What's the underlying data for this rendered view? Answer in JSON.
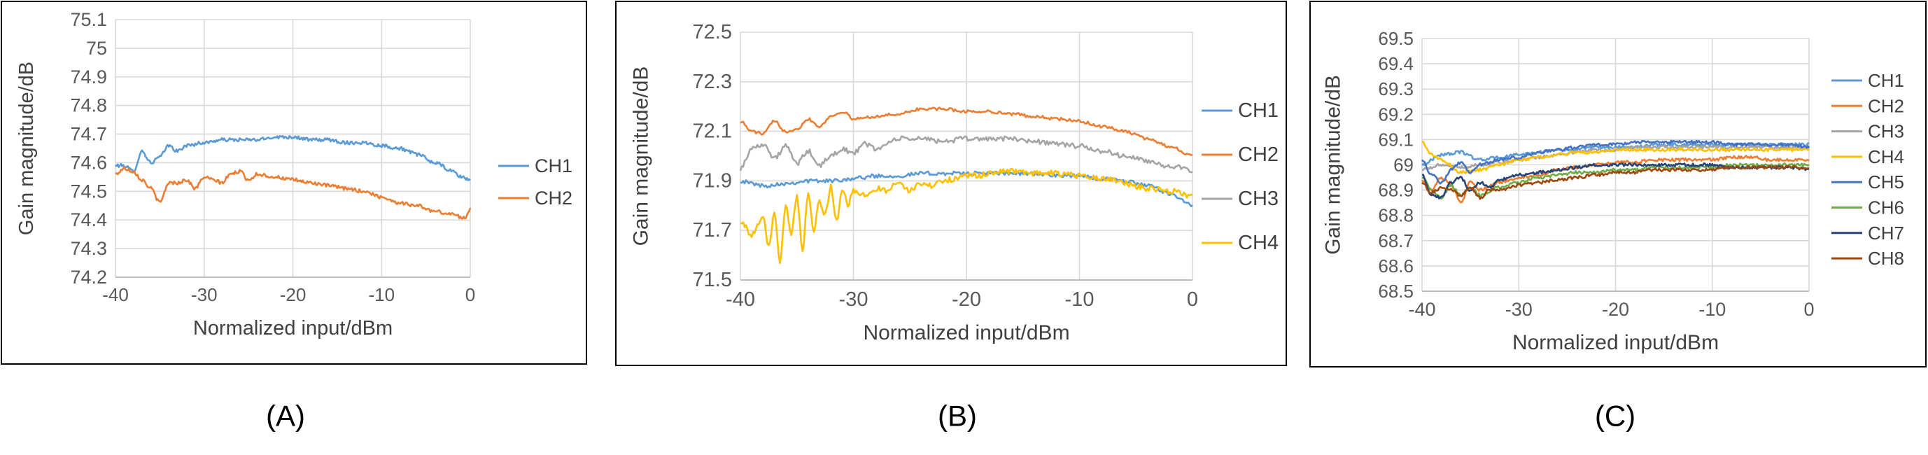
{
  "chart_data": [
    {
      "panel_label": "(A)",
      "type": "line",
      "xlabel": "Normalized input/dBm",
      "ylabel": "Gain magnitude/dB",
      "xlim": [
        -40,
        0
      ],
      "ylim": [
        74.2,
        75.1
      ],
      "xticks": [
        -40,
        -30,
        -20,
        -10,
        0
      ],
      "yticks": [
        74.2,
        74.3,
        74.4,
        74.5,
        74.6,
        74.7,
        74.8,
        74.9,
        75,
        75.1
      ],
      "grid": true,
      "legend": "right",
      "series": [
        {
          "name": "CH1",
          "color": "#5B9BD5",
          "x": [
            -40,
            -39,
            -38,
            -37,
            -36,
            -35,
            -34,
            -33,
            -32,
            -30,
            -28,
            -26,
            -24,
            -22,
            -20,
            -18,
            -16,
            -14,
            -12,
            -10,
            -8,
            -6,
            -4,
            -2,
            -1,
            0
          ],
          "y": [
            74.59,
            74.59,
            74.57,
            74.64,
            74.6,
            74.62,
            74.66,
            74.64,
            74.66,
            74.67,
            74.68,
            74.68,
            74.68,
            74.69,
            74.69,
            74.68,
            74.68,
            74.67,
            74.67,
            74.66,
            74.65,
            74.63,
            74.6,
            74.57,
            74.55,
            74.54
          ],
          "noise": 0.006
        },
        {
          "name": "CH2",
          "color": "#ED7D31",
          "x": [
            -40,
            -39,
            -38,
            -37,
            -36,
            -35,
            -34,
            -33,
            -32,
            -31,
            -30,
            -29,
            -28,
            -27,
            -26,
            -25,
            -24,
            -22,
            -20,
            -18,
            -16,
            -14,
            -12,
            -10,
            -8,
            -6,
            -4,
            -2,
            -1,
            -0.5,
            0
          ],
          "y": [
            74.56,
            74.58,
            74.57,
            74.54,
            74.51,
            74.46,
            74.53,
            74.53,
            74.54,
            74.51,
            74.55,
            74.54,
            74.53,
            74.56,
            74.57,
            74.54,
            74.56,
            74.55,
            74.54,
            74.53,
            74.52,
            74.51,
            74.5,
            74.48,
            74.46,
            74.45,
            74.43,
            74.42,
            74.41,
            74.41,
            74.44
          ],
          "noise": 0.006
        }
      ]
    },
    {
      "panel_label": "(B)",
      "type": "line",
      "xlabel": "Normalized input/dBm",
      "ylabel": "Gain magnitude/dB",
      "xlim": [
        -40,
        0
      ],
      "ylim": [
        71.5,
        72.5
      ],
      "xticks": [
        -40,
        -30,
        -20,
        -10,
        0
      ],
      "yticks": [
        71.5,
        71.7,
        71.9,
        72.1,
        72.3,
        72.5
      ],
      "grid": true,
      "legend": "right",
      "series": [
        {
          "name": "CH1",
          "color": "#5B9BD5",
          "x": [
            -40,
            -39,
            -38,
            -36,
            -34,
            -32,
            -30,
            -28,
            -26,
            -24,
            -22,
            -20,
            -18,
            -16,
            -14,
            -12,
            -10,
            -8,
            -6,
            -4,
            -2,
            0
          ],
          "y": [
            71.9,
            71.89,
            71.88,
            71.89,
            71.9,
            71.9,
            71.91,
            71.92,
            71.92,
            71.93,
            71.93,
            71.93,
            71.93,
            71.93,
            71.93,
            71.92,
            71.92,
            71.91,
            71.9,
            71.88,
            71.85,
            71.8
          ],
          "noise": 0.008
        },
        {
          "name": "CH2",
          "color": "#ED7D31",
          "x": [
            -40,
            -39,
            -38,
            -37,
            -36,
            -35,
            -34,
            -33,
            -32,
            -31,
            -30,
            -28,
            -26,
            -24,
            -22,
            -20,
            -18,
            -16,
            -14,
            -12,
            -10,
            -8,
            -6,
            -4,
            -2,
            0
          ],
          "y": [
            72.14,
            72.1,
            72.09,
            72.14,
            72.1,
            72.11,
            72.15,
            72.12,
            72.16,
            72.18,
            72.15,
            72.16,
            72.17,
            72.19,
            72.19,
            72.18,
            72.18,
            72.17,
            72.16,
            72.15,
            72.14,
            72.12,
            72.1,
            72.07,
            72.04,
            72.0
          ],
          "noise": 0.006
        },
        {
          "name": "CH3",
          "color": "#A5A5A5",
          "x": [
            -40,
            -39,
            -38,
            -37,
            -36,
            -35,
            -34,
            -33,
            -32,
            -31,
            -30,
            -29,
            -28,
            -26,
            -24,
            -22,
            -20,
            -18,
            -16,
            -14,
            -12,
            -10,
            -8,
            -6,
            -4,
            -2,
            0
          ],
          "y": [
            71.95,
            72.03,
            72.05,
            71.99,
            72.04,
            71.97,
            72.02,
            71.96,
            72.0,
            72.03,
            72.01,
            72.05,
            72.03,
            72.07,
            72.07,
            72.06,
            72.07,
            72.07,
            72.07,
            72.06,
            72.05,
            72.04,
            72.02,
            72.0,
            71.98,
            71.96,
            71.94
          ],
          "noise": 0.01
        },
        {
          "name": "CH4",
          "color": "#FFC000",
          "x": [
            -40,
            -39,
            -38,
            -37.5,
            -37,
            -36.5,
            -36,
            -35.5,
            -35,
            -34.5,
            -34,
            -33.5,
            -33,
            -32.5,
            -32,
            -31.5,
            -31,
            -30.5,
            -30,
            -29,
            -28,
            -27,
            -26,
            -25,
            -24,
            -23,
            -22,
            -21,
            -20,
            -19,
            -18,
            -17,
            -16,
            -14,
            -12,
            -10,
            -8,
            -6,
            -4,
            -2,
            0
          ],
          "y": [
            71.74,
            71.68,
            71.75,
            71.63,
            71.78,
            71.58,
            71.8,
            71.68,
            71.84,
            71.62,
            71.86,
            71.7,
            71.82,
            71.76,
            71.88,
            71.74,
            71.87,
            71.8,
            71.86,
            71.84,
            71.87,
            71.86,
            71.9,
            71.86,
            71.89,
            71.88,
            71.9,
            71.91,
            71.92,
            71.92,
            71.93,
            71.94,
            71.94,
            71.93,
            71.93,
            71.92,
            71.91,
            71.89,
            71.87,
            71.86,
            71.84
          ],
          "noise": 0.012
        }
      ]
    },
    {
      "panel_label": "(C)",
      "type": "line",
      "xlabel": "Normalized input/dBm",
      "ylabel": "Gain magnitude/dB",
      "xlim": [
        -40,
        0
      ],
      "ylim": [
        68.5,
        69.5
      ],
      "xticks": [
        -40,
        -30,
        -20,
        -10,
        0
      ],
      "yticks": [
        68.5,
        68.6,
        68.7,
        68.8,
        68.9,
        69,
        69.1,
        69.2,
        69.3,
        69.4,
        69.5
      ],
      "grid": true,
      "legend": "right",
      "series": [
        {
          "name": "CH1",
          "color": "#5B9BD5",
          "x": [
            -40,
            -38,
            -36,
            -34,
            -32,
            -30,
            -28,
            -26,
            -24,
            -22,
            -20,
            -18,
            -16,
            -14,
            -12,
            -10,
            -8,
            -6,
            -4,
            -2,
            0
          ],
          "y": [
            69.0,
            69.04,
            69.05,
            69.02,
            69.03,
            69.04,
            69.05,
            69.06,
            69.06,
            69.07,
            69.07,
            69.07,
            69.08,
            69.08,
            69.08,
            69.08,
            69.08,
            69.08,
            69.08,
            69.08,
            69.08
          ],
          "noise": 0.006
        },
        {
          "name": "CH2",
          "color": "#ED7D31",
          "x": [
            -40,
            -39,
            -38,
            -37,
            -36,
            -35,
            -34,
            -32,
            -30,
            -28,
            -26,
            -24,
            -22,
            -20,
            -18,
            -16,
            -14,
            -12,
            -10,
            -8,
            -6,
            -4,
            -2,
            0
          ],
          "y": [
            68.94,
            68.9,
            68.95,
            68.92,
            68.85,
            68.93,
            68.9,
            68.93,
            68.95,
            68.96,
            68.98,
            68.99,
            69.0,
            69.01,
            69.01,
            69.02,
            69.02,
            69.02,
            69.02,
            69.03,
            69.03,
            69.02,
            69.02,
            69.02
          ],
          "noise": 0.006
        },
        {
          "name": "CH3",
          "color": "#A5A5A5",
          "x": [
            -40,
            -38,
            -36,
            -34,
            -32,
            -30,
            -28,
            -26,
            -24,
            -22,
            -20,
            -18,
            -16,
            -14,
            -12,
            -10,
            -8,
            -6,
            -4,
            -2,
            0
          ],
          "y": [
            68.98,
            69.0,
            68.99,
            69.0,
            69.01,
            69.02,
            69.03,
            69.04,
            69.05,
            69.06,
            69.06,
            69.07,
            69.07,
            69.07,
            69.07,
            69.07,
            69.07,
            69.07,
            69.07,
            69.07,
            69.07
          ],
          "noise": 0.006
        },
        {
          "name": "CH4",
          "color": "#FFC000",
          "x": [
            -40,
            -39,
            -38,
            -36,
            -34,
            -32,
            -30,
            -28,
            -26,
            -24,
            -22,
            -20,
            -18,
            -16,
            -14,
            -12,
            -10,
            -8,
            -6,
            -4,
            -2,
            0
          ],
          "y": [
            69.09,
            69.04,
            69.02,
            68.97,
            68.98,
            69.0,
            69.02,
            69.03,
            69.04,
            69.05,
            69.05,
            69.06,
            69.06,
            69.06,
            69.06,
            69.06,
            69.06,
            69.06,
            69.06,
            69.06,
            69.06,
            69.06
          ],
          "noise": 0.006
        },
        {
          "name": "CH5",
          "color": "#4472C4",
          "x": [
            -40,
            -39,
            -38,
            -37,
            -36,
            -35,
            -34,
            -32,
            -30,
            -28,
            -26,
            -24,
            -22,
            -20,
            -18,
            -16,
            -14,
            -12,
            -10,
            -8,
            -6,
            -4,
            -2,
            0
          ],
          "y": [
            69.02,
            68.96,
            68.93,
            68.98,
            69.01,
            68.97,
            69.0,
            69.02,
            69.03,
            69.05,
            69.06,
            69.07,
            69.08,
            69.08,
            69.09,
            69.09,
            69.09,
            69.09,
            69.09,
            69.08,
            69.08,
            69.08,
            69.08,
            69.07
          ],
          "noise": 0.006
        },
        {
          "name": "CH6",
          "color": "#70AD47",
          "x": [
            -40,
            -39,
            -38,
            -37,
            -36,
            -35,
            -34,
            -32,
            -30,
            -28,
            -26,
            -24,
            -22,
            -20,
            -18,
            -16,
            -14,
            -12,
            -10,
            -8,
            -6,
            -4,
            -2,
            0
          ],
          "y": [
            68.95,
            68.9,
            68.87,
            68.92,
            68.88,
            68.91,
            68.88,
            68.91,
            68.93,
            68.95,
            68.96,
            68.97,
            68.97,
            68.98,
            68.98,
            68.99,
            68.99,
            68.99,
            68.99,
            69.0,
            69.0,
            69.0,
            69.0,
            69.0
          ],
          "noise": 0.006
        },
        {
          "name": "CH7",
          "color": "#264478",
          "x": [
            -40,
            -39,
            -38,
            -37,
            -36,
            -35,
            -34,
            -33,
            -32,
            -30,
            -28,
            -26,
            -24,
            -22,
            -20,
            -18,
            -16,
            -14,
            -12,
            -10,
            -8,
            -6,
            -4,
            -2,
            0
          ],
          "y": [
            68.96,
            68.88,
            68.87,
            68.93,
            68.95,
            68.9,
            68.93,
            68.91,
            68.94,
            68.96,
            68.97,
            68.98,
            68.99,
            69.0,
            69.0,
            69.0,
            69.0,
            69.0,
            69.0,
            69.0,
            68.99,
            68.99,
            68.99,
            68.99,
            68.98
          ],
          "noise": 0.006
        },
        {
          "name": "CH8",
          "color": "#9E480E",
          "x": [
            -40,
            -39,
            -38,
            -37,
            -36,
            -35,
            -34,
            -33,
            -32,
            -30,
            -28,
            -26,
            -24,
            -22,
            -20,
            -18,
            -16,
            -14,
            -12,
            -10,
            -8,
            -6,
            -4,
            -2,
            0
          ],
          "y": [
            68.93,
            68.89,
            68.91,
            68.9,
            68.88,
            68.91,
            68.87,
            68.9,
            68.9,
            68.92,
            68.93,
            68.94,
            68.95,
            68.96,
            68.97,
            68.97,
            68.98,
            68.98,
            68.98,
            68.98,
            68.99,
            68.99,
            68.99,
            68.99,
            68.99
          ],
          "noise": 0.006
        }
      ]
    }
  ]
}
